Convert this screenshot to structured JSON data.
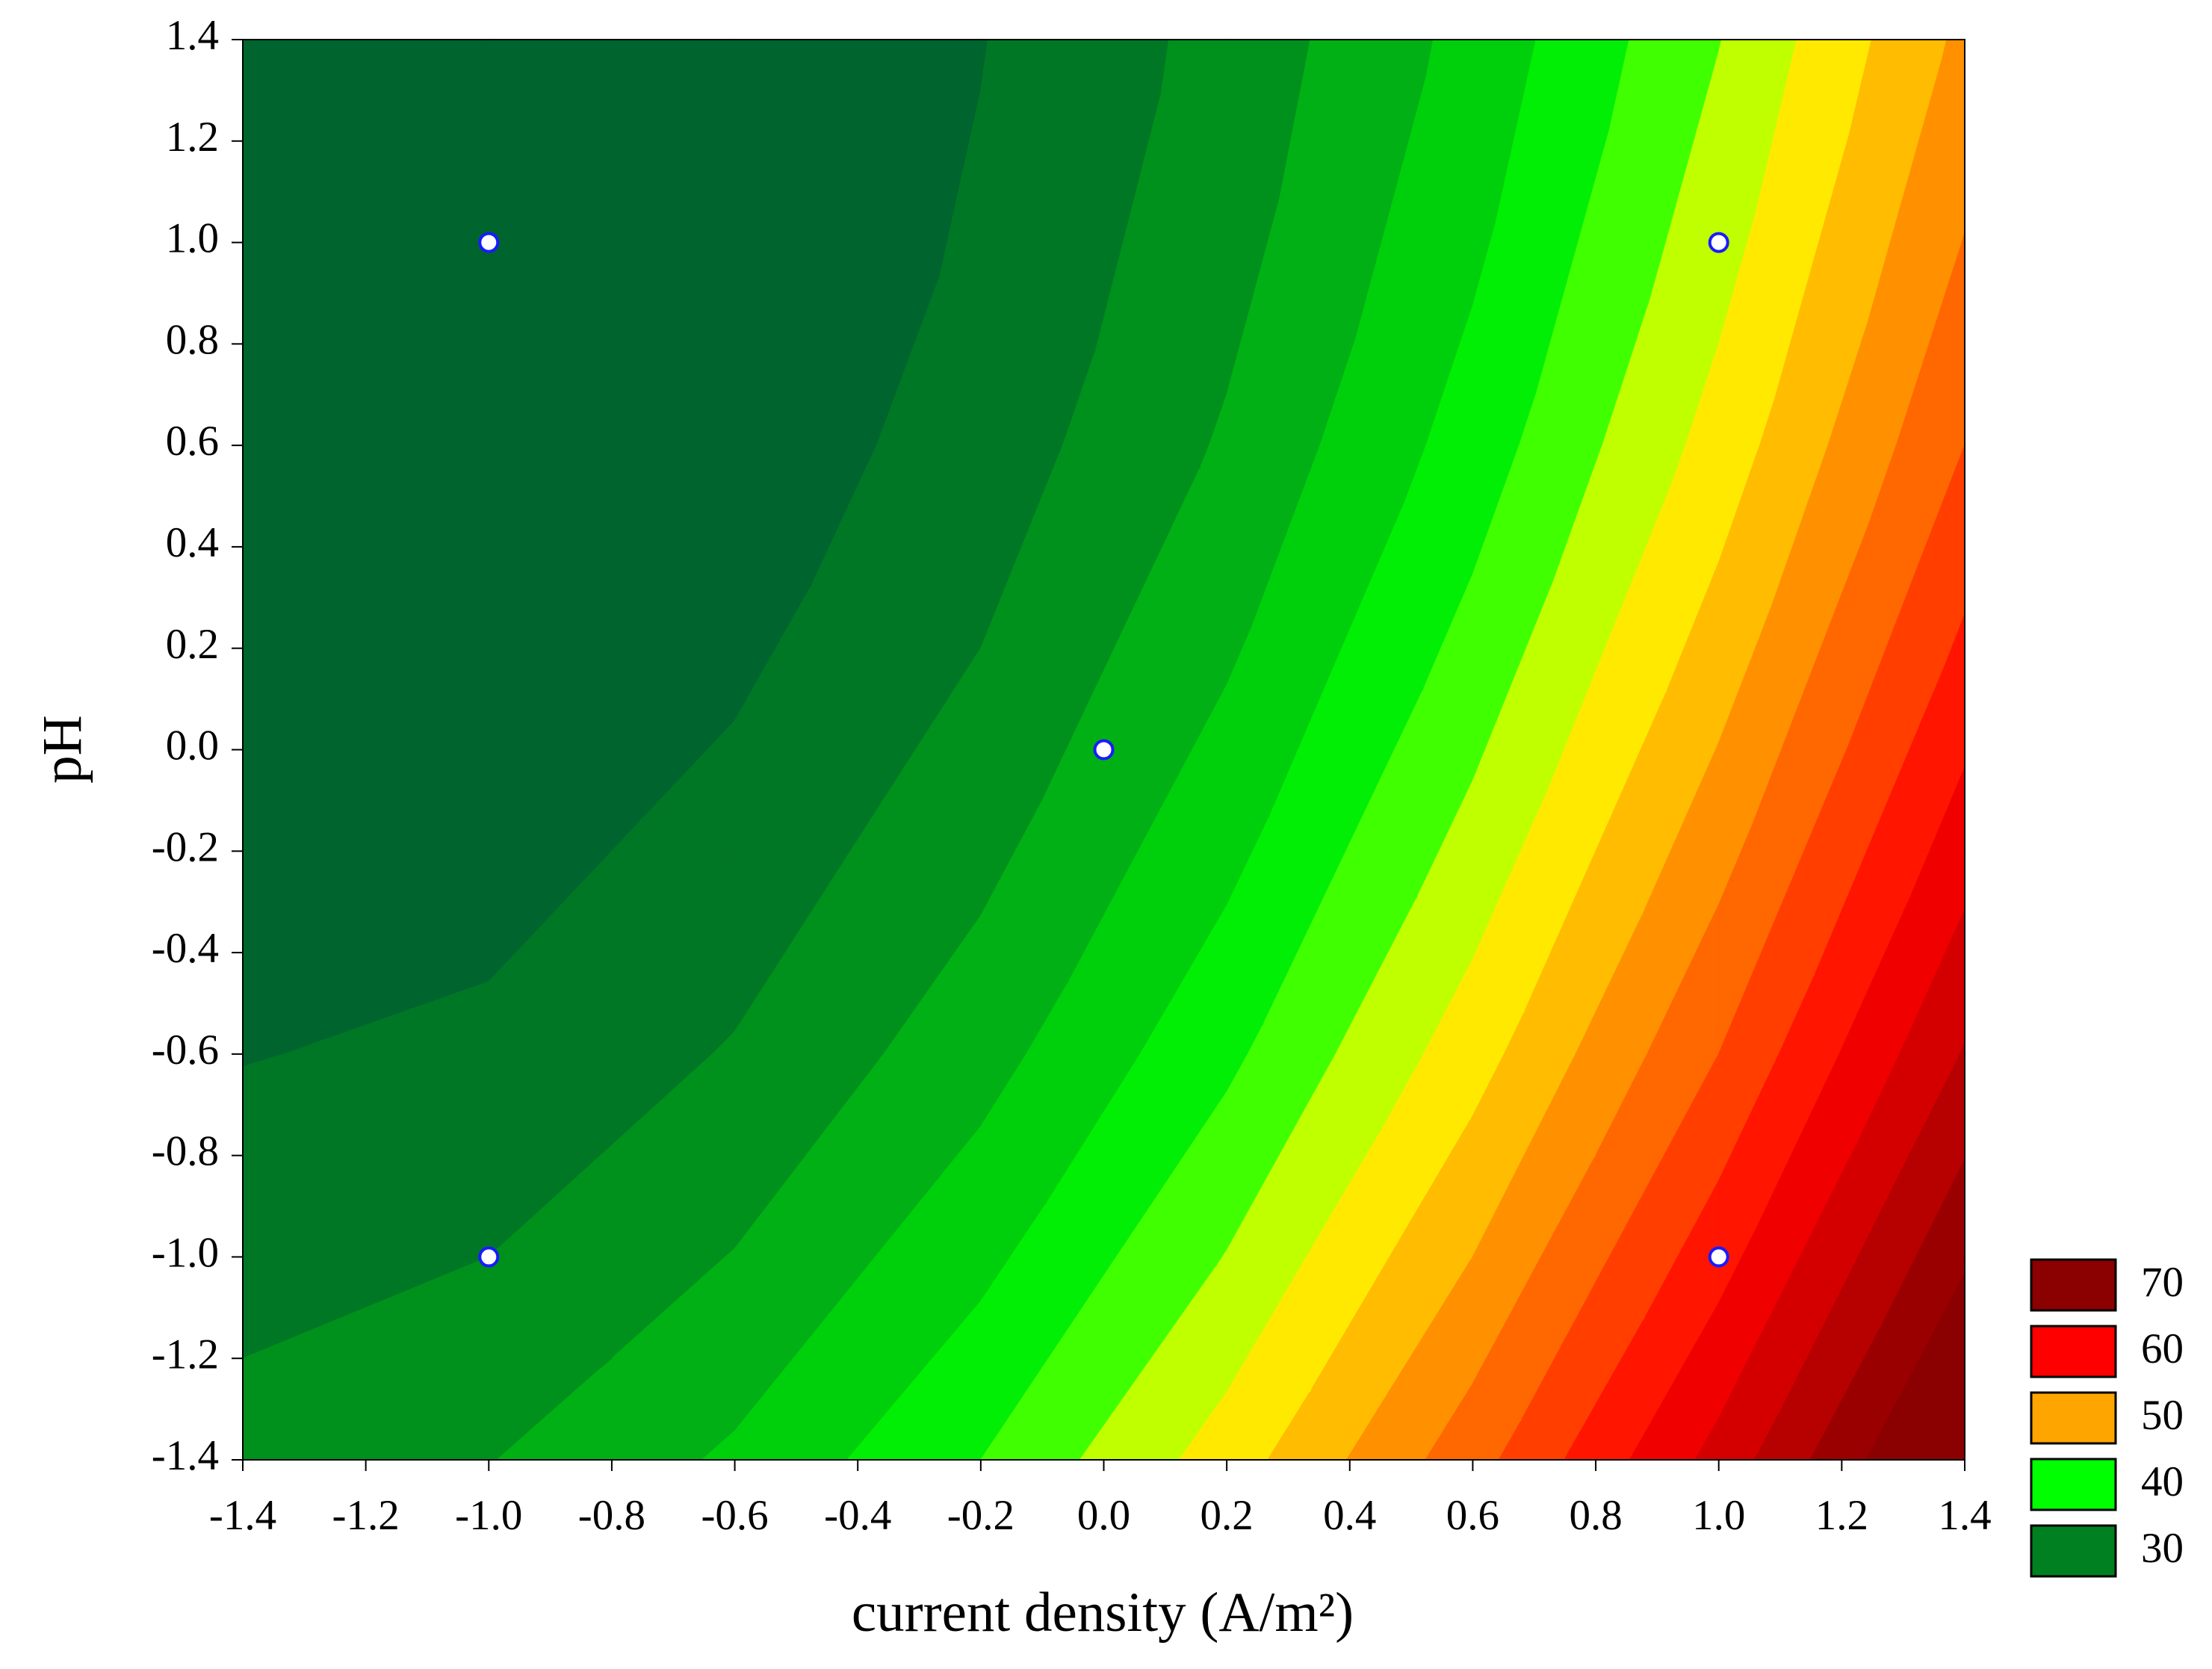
{
  "chart_data": {
    "type": "contour",
    "xlabel": "current density (A/m²)",
    "ylabel": "pH",
    "xlim": [
      -1.4,
      1.4
    ],
    "ylim": [
      -1.4,
      1.4
    ],
    "xticks": [
      -1.4,
      -1.2,
      {
        "value": -1,
        "label": "-1.0"
      },
      -0.8,
      -0.6,
      -0.4,
      -0.2,
      {
        "value": 0,
        "label": "0.0"
      },
      0.2,
      0.4,
      0.6,
      0.8,
      {
        "value": 1,
        "label": "1.0"
      },
      1.2,
      1.4
    ],
    "yticks": [
      -1.4,
      -1.2,
      {
        "value": -1,
        "label": "-1.0"
      },
      -0.8,
      -0.6,
      -0.4,
      -0.2,
      {
        "value": 0,
        "label": "0.0"
      },
      0.2,
      0.4,
      0.6,
      0.8,
      {
        "value": 1,
        "label": "1.0"
      },
      1.2,
      1.4
    ],
    "x": [
      -1.4,
      -1.0,
      -0.6,
      -0.2,
      0.2,
      0.6,
      1.0,
      1.4
    ],
    "y": [
      -1.4,
      -1.0,
      -0.6,
      -0.2,
      0.2,
      0.6,
      1.0,
      1.4
    ],
    "z": [
      [
        31.0,
        32.4,
        35.4,
        40.0,
        46.2,
        54.0,
        63.4,
        74.4
      ],
      [
        29.0,
        30.0,
        32.6,
        36.8,
        42.6,
        50.0,
        59.0,
        69.6
      ],
      [
        27.4,
        28.0,
        30.2,
        34.0,
        39.4,
        46.4,
        55.0,
        65.2
      ],
      [
        26.4,
        26.6,
        28.4,
        31.8,
        36.8,
        43.4,
        51.6,
        61.4
      ],
      [
        25.8,
        25.6,
        27.0,
        30.0,
        34.6,
        40.8,
        48.6,
        58.0
      ],
      [
        25.6,
        25.0,
        26.0,
        28.6,
        32.8,
        38.6,
        46.0,
        55.0
      ],
      [
        26.0,
        25.0,
        25.6,
        27.8,
        31.6,
        37.0,
        44.0,
        52.6
      ],
      [
        26.8,
        25.4,
        25.6,
        27.4,
        30.8,
        35.8,
        42.4,
        50.6
      ]
    ],
    "levels": [
      25,
      27.5,
      30,
      32.5,
      35,
      37.5,
      40,
      42.5,
      45,
      47.5,
      50,
      52.5,
      55,
      57.5,
      60,
      62.5,
      65,
      67.5,
      70,
      72.5
    ],
    "colorscale": [
      {
        "value": 25,
        "color": "#005a32"
      },
      {
        "value": 30,
        "color": "#008020"
      },
      {
        "value": 40,
        "color": "#00ff00"
      },
      {
        "value": 45,
        "color": "#ffff00"
      },
      {
        "value": 50,
        "color": "#ffa500"
      },
      {
        "value": 60,
        "color": "#ff0000"
      },
      {
        "value": 70,
        "color": "#8b0000"
      }
    ],
    "points": {
      "x": [
        -1,
        1,
        0,
        -1,
        1
      ],
      "y": [
        1,
        1,
        0,
        -1,
        -1
      ]
    },
    "legend": [
      {
        "value": 70,
        "color": "#8b0000"
      },
      {
        "value": 60,
        "color": "#ff0000"
      },
      {
        "value": 50,
        "color": "#ffa500"
      },
      {
        "value": 40,
        "color": "#00ff00"
      },
      {
        "value": 30,
        "color": "#008020"
      }
    ]
  }
}
